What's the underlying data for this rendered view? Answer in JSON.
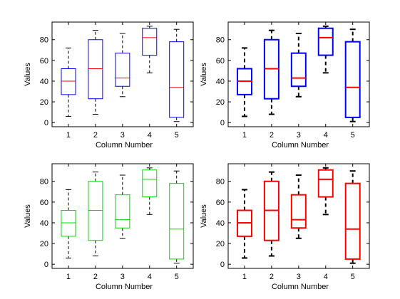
{
  "chart_data": [
    {
      "type": "box",
      "xlabel": "Column Number",
      "ylabel": "Values",
      "categories": [
        "1",
        "2",
        "3",
        "4",
        "5"
      ],
      "yticks": [
        "0",
        "20",
        "40",
        "60",
        "80"
      ],
      "ylim": [
        -4,
        97
      ],
      "box_color": "#0000ff",
      "median_color": "#ff0000",
      "line_weight": "thin",
      "boxes": [
        {
          "min": 6,
          "q1": 27,
          "median": 40,
          "q3": 52,
          "max": 72
        },
        {
          "min": 8,
          "q1": 23,
          "median": 52,
          "q3": 80,
          "max": 89
        },
        {
          "min": 25,
          "q1": 35,
          "median": 43,
          "q3": 67,
          "max": 86
        },
        {
          "min": 48,
          "q1": 65,
          "median": 82,
          "q3": 91,
          "max": 93
        },
        {
          "min": 1,
          "q1": 5,
          "median": 34,
          "q3": 78,
          "max": 90
        }
      ]
    },
    {
      "type": "box",
      "xlabel": "Column Number",
      "ylabel": "Values",
      "categories": [
        "1",
        "2",
        "3",
        "4",
        "5"
      ],
      "yticks": [
        "0",
        "20",
        "40",
        "60",
        "80"
      ],
      "ylim": [
        -4,
        97
      ],
      "box_color": "#0000ff",
      "median_color": "#ff0000",
      "line_weight": "thick",
      "boxes": [
        {
          "min": 6,
          "q1": 27,
          "median": 40,
          "q3": 52,
          "max": 72
        },
        {
          "min": 8,
          "q1": 23,
          "median": 52,
          "q3": 80,
          "max": 89
        },
        {
          "min": 25,
          "q1": 35,
          "median": 43,
          "q3": 67,
          "max": 86
        },
        {
          "min": 48,
          "q1": 65,
          "median": 82,
          "q3": 91,
          "max": 93
        },
        {
          "min": 1,
          "q1": 5,
          "median": 34,
          "q3": 78,
          "max": 90
        }
      ]
    },
    {
      "type": "box",
      "xlabel": "Column Number",
      "ylabel": "Values",
      "categories": [
        "1",
        "2",
        "3",
        "4",
        "5"
      ],
      "yticks": [
        "0",
        "20",
        "40",
        "60",
        "80"
      ],
      "ylim": [
        -4,
        97
      ],
      "box_color": "#00dd00",
      "median_color": "#00dd00",
      "line_weight": "thin",
      "boxes": [
        {
          "min": 6,
          "q1": 27,
          "median": 40,
          "q3": 52,
          "max": 72
        },
        {
          "min": 8,
          "q1": 23,
          "median": 52,
          "q3": 80,
          "max": 89
        },
        {
          "min": 25,
          "q1": 35,
          "median": 43,
          "q3": 67,
          "max": 86
        },
        {
          "min": 48,
          "q1": 65,
          "median": 82,
          "q3": 91,
          "max": 93
        },
        {
          "min": 1,
          "q1": 5,
          "median": 34,
          "q3": 78,
          "max": 90
        }
      ]
    },
    {
      "type": "box",
      "xlabel": "Column Number",
      "ylabel": "Values",
      "categories": [
        "1",
        "2",
        "3",
        "4",
        "5"
      ],
      "yticks": [
        "0",
        "20",
        "40",
        "60",
        "80"
      ],
      "ylim": [
        -4,
        97
      ],
      "box_color": "#ff0000",
      "median_color": "#ff0000",
      "line_weight": "thick",
      "boxes": [
        {
          "min": 6,
          "q1": 27,
          "median": 40,
          "q3": 52,
          "max": 72
        },
        {
          "min": 8,
          "q1": 23,
          "median": 52,
          "q3": 80,
          "max": 89
        },
        {
          "min": 25,
          "q1": 35,
          "median": 43,
          "q3": 67,
          "max": 86
        },
        {
          "min": 48,
          "q1": 65,
          "median": 82,
          "q3": 91,
          "max": 93
        },
        {
          "min": 1,
          "q1": 5,
          "median": 34,
          "q3": 78,
          "max": 90
        }
      ]
    }
  ]
}
